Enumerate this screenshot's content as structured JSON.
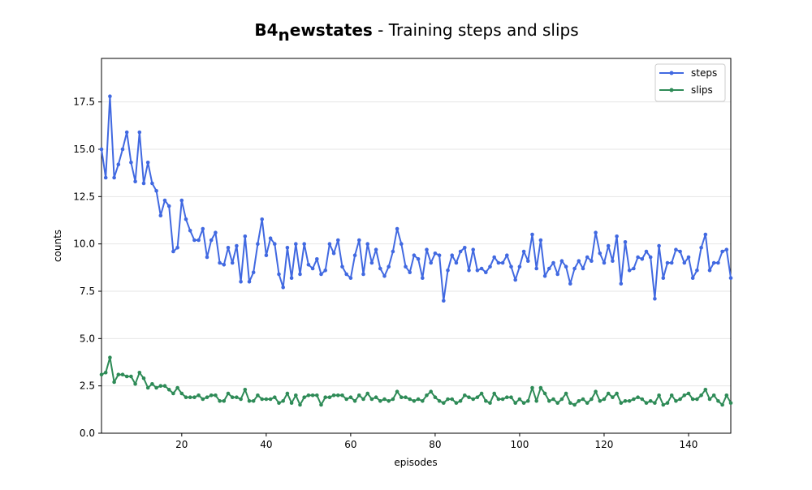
{
  "chart_data": {
    "type": "line",
    "title": {
      "bold_main": "B4",
      "bold_sub": "n",
      "bold_rest": "ewstates",
      "rest": " - Training steps and slips"
    },
    "xlabel": "episodes",
    "ylabel": "counts",
    "xlim": [
      1,
      150
    ],
    "ylim": [
      0,
      19.8
    ],
    "xticks": [
      20,
      40,
      60,
      80,
      100,
      120,
      140
    ],
    "yticks": [
      0.0,
      2.5,
      5.0,
      7.5,
      10.0,
      12.5,
      15.0,
      17.5
    ],
    "ytick_labels": [
      "0.0",
      "2.5",
      "5.0",
      "7.5",
      "10.0",
      "12.5",
      "15.0",
      "17.5"
    ],
    "grid": "horizontal",
    "legend_position": "top-right",
    "series": [
      {
        "name": "steps",
        "color": "#4169e1",
        "x": [
          1,
          2,
          3,
          4,
          5,
          6,
          7,
          8,
          9,
          10,
          11,
          12,
          13,
          14,
          15,
          16,
          17,
          18,
          19,
          20,
          21,
          22,
          23,
          24,
          25,
          26,
          27,
          28,
          29,
          30,
          31,
          32,
          33,
          34,
          35,
          36,
          37,
          38,
          39,
          40,
          41,
          42,
          43,
          44,
          45,
          46,
          47,
          48,
          49,
          50,
          51,
          52,
          53,
          54,
          55,
          56,
          57,
          58,
          59,
          60,
          61,
          62,
          63,
          64,
          65,
          66,
          67,
          68,
          69,
          70,
          71,
          72,
          73,
          74,
          75,
          76,
          77,
          78,
          79,
          80,
          81,
          82,
          83,
          84,
          85,
          86,
          87,
          88,
          89,
          90,
          91,
          92,
          93,
          94,
          95,
          96,
          97,
          98,
          99,
          100,
          101,
          102,
          103,
          104,
          105,
          106,
          107,
          108,
          109,
          110,
          111,
          112,
          113,
          114,
          115,
          116,
          117,
          118,
          119,
          120,
          121,
          122,
          123,
          124,
          125,
          126,
          127,
          128,
          129,
          130,
          131,
          132,
          133,
          134,
          135,
          136,
          137,
          138,
          139,
          140,
          141,
          142,
          143,
          144,
          145,
          146,
          147,
          148,
          149,
          150
        ],
        "values": [
          15.0,
          13.5,
          17.8,
          13.5,
          14.2,
          15.0,
          15.9,
          14.3,
          13.3,
          15.9,
          13.2,
          14.3,
          13.2,
          12.8,
          11.5,
          12.3,
          12.0,
          9.6,
          9.8,
          12.3,
          11.3,
          10.7,
          10.2,
          10.2,
          10.8,
          9.3,
          10.2,
          10.6,
          9.0,
          8.9,
          9.8,
          9.0,
          9.9,
          8.0,
          10.4,
          8.0,
          8.5,
          10.0,
          11.3,
          9.4,
          10.3,
          10.0,
          8.4,
          7.7,
          9.8,
          8.2,
          10.0,
          8.4,
          10.0,
          8.9,
          8.7,
          9.2,
          8.4,
          8.6,
          10.0,
          9.5,
          10.2,
          8.8,
          8.4,
          8.2,
          9.4,
          10.2,
          8.4,
          10.0,
          9.0,
          9.7,
          8.7,
          8.3,
          8.8,
          9.6,
          10.8,
          10.0,
          8.8,
          8.5,
          9.4,
          9.2,
          8.2,
          9.7,
          9.0,
          9.5,
          9.4,
          7.0,
          8.6,
          9.4,
          9.0,
          9.6,
          9.8,
          8.6,
          9.7,
          8.6,
          8.7,
          8.5,
          8.8,
          9.3,
          9.0,
          9.0,
          9.4,
          8.8,
          8.1,
          8.8,
          9.6,
          9.1,
          10.5,
          8.7,
          10.2,
          8.3,
          8.7,
          9.0,
          8.4,
          9.1,
          8.8,
          7.9,
          8.7,
          9.1,
          8.7,
          9.3,
          9.1,
          10.6,
          9.5,
          9.0,
          9.9,
          9.1,
          10.4,
          7.9,
          10.1,
          8.6,
          8.7,
          9.3,
          9.2,
          9.6,
          9.3,
          7.1,
          9.9,
          8.2,
          9.0,
          9.0,
          9.7,
          9.6,
          9.0,
          9.3,
          8.2,
          8.6,
          9.8,
          10.5,
          8.6,
          9.0,
          9.0,
          9.6,
          9.7,
          8.2
        ]
      },
      {
        "name": "slips",
        "color": "#2e8b57",
        "x": [
          1,
          2,
          3,
          4,
          5,
          6,
          7,
          8,
          9,
          10,
          11,
          12,
          13,
          14,
          15,
          16,
          17,
          18,
          19,
          20,
          21,
          22,
          23,
          24,
          25,
          26,
          27,
          28,
          29,
          30,
          31,
          32,
          33,
          34,
          35,
          36,
          37,
          38,
          39,
          40,
          41,
          42,
          43,
          44,
          45,
          46,
          47,
          48,
          49,
          50,
          51,
          52,
          53,
          54,
          55,
          56,
          57,
          58,
          59,
          60,
          61,
          62,
          63,
          64,
          65,
          66,
          67,
          68,
          69,
          70,
          71,
          72,
          73,
          74,
          75,
          76,
          77,
          78,
          79,
          80,
          81,
          82,
          83,
          84,
          85,
          86,
          87,
          88,
          89,
          90,
          91,
          92,
          93,
          94,
          95,
          96,
          97,
          98,
          99,
          100,
          101,
          102,
          103,
          104,
          105,
          106,
          107,
          108,
          109,
          110,
          111,
          112,
          113,
          114,
          115,
          116,
          117,
          118,
          119,
          120,
          121,
          122,
          123,
          124,
          125,
          126,
          127,
          128,
          129,
          130,
          131,
          132,
          133,
          134,
          135,
          136,
          137,
          138,
          139,
          140,
          141,
          142,
          143,
          144,
          145,
          146,
          147,
          148,
          149,
          150
        ],
        "values": [
          3.1,
          3.2,
          4.0,
          2.7,
          3.1,
          3.1,
          3.0,
          3.0,
          2.6,
          3.2,
          2.9,
          2.4,
          2.6,
          2.4,
          2.5,
          2.5,
          2.3,
          2.1,
          2.4,
          2.1,
          1.9,
          1.9,
          1.9,
          2.0,
          1.8,
          1.9,
          2.0,
          2.0,
          1.7,
          1.7,
          2.1,
          1.9,
          1.9,
          1.8,
          2.3,
          1.7,
          1.7,
          2.0,
          1.8,
          1.8,
          1.8,
          1.9,
          1.6,
          1.7,
          2.1,
          1.6,
          2.0,
          1.5,
          1.9,
          2.0,
          2.0,
          2.0,
          1.5,
          1.9,
          1.9,
          2.0,
          2.0,
          2.0,
          1.8,
          1.9,
          1.7,
          2.0,
          1.8,
          2.1,
          1.8,
          1.9,
          1.7,
          1.8,
          1.7,
          1.8,
          2.2,
          1.9,
          1.9,
          1.8,
          1.7,
          1.8,
          1.7,
          2.0,
          2.2,
          1.9,
          1.7,
          1.6,
          1.8,
          1.8,
          1.6,
          1.7,
          2.0,
          1.9,
          1.8,
          1.9,
          2.1,
          1.7,
          1.6,
          2.1,
          1.8,
          1.8,
          1.9,
          1.9,
          1.6,
          1.8,
          1.6,
          1.7,
          2.4,
          1.7,
          2.4,
          2.1,
          1.7,
          1.8,
          1.6,
          1.8,
          2.1,
          1.6,
          1.5,
          1.7,
          1.8,
          1.6,
          1.8,
          2.2,
          1.7,
          1.8,
          2.1,
          1.9,
          2.1,
          1.6,
          1.7,
          1.7,
          1.8,
          1.9,
          1.8,
          1.6,
          1.7,
          1.6,
          2.0,
          1.5,
          1.6,
          2.0,
          1.7,
          1.8,
          2.0,
          2.1,
          1.8,
          1.8,
          2.0,
          2.3,
          1.8,
          2.0,
          1.7,
          1.5,
          2.0,
          1.6
        ]
      }
    ]
  }
}
